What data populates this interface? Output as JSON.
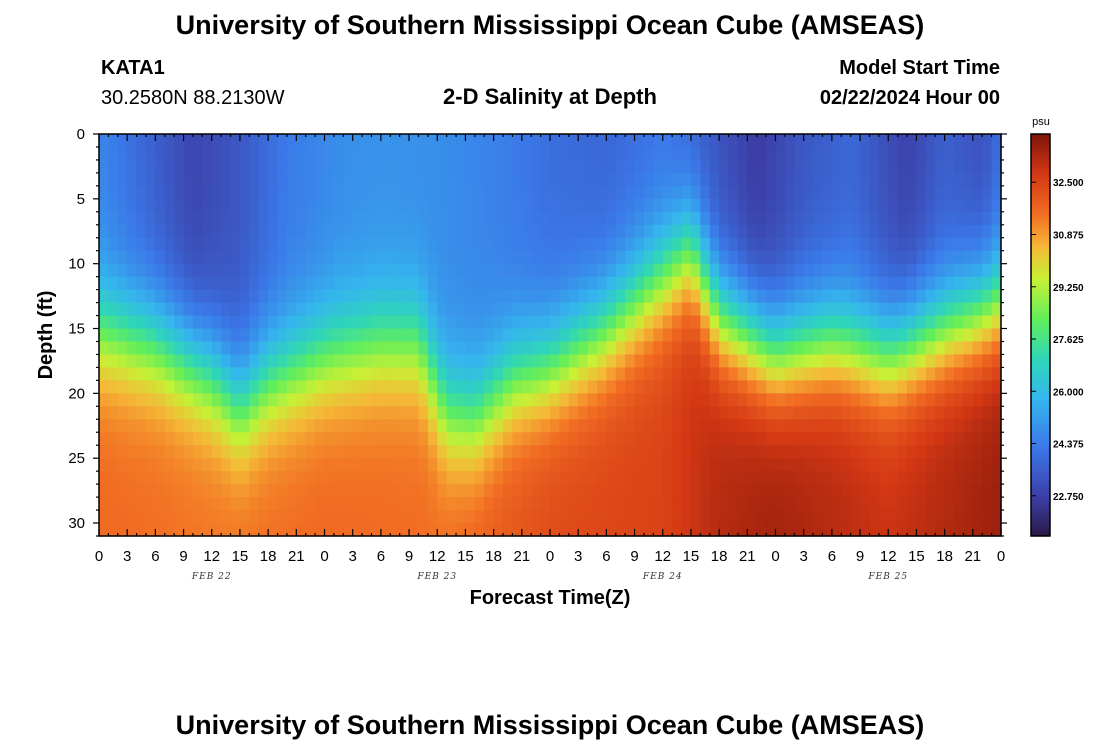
{
  "header": {
    "title": "University of Southern Mississippi Ocean Cube (AMSEAS)",
    "station": "KATA1",
    "coords": "30.2580N  88.2130W",
    "plot_title": "2-D Salinity at Depth",
    "model_start_label": "Model Start Time",
    "model_start_value": "02/22/2024 Hour 00"
  },
  "footer": {
    "title": "University of Southern Mississippi Ocean Cube (AMSEAS)"
  },
  "chart_data": {
    "type": "heatmap",
    "title": "2-D Salinity at Depth",
    "xlabel": "Forecast Time(Z)",
    "ylabel": "Depth (ft)",
    "x_tick_labels": [
      "0",
      "3",
      "6",
      "9",
      "12",
      "15",
      "18",
      "21",
      "0",
      "3",
      "6",
      "9",
      "12",
      "15",
      "18",
      "21",
      "0",
      "3",
      "6",
      "9",
      "12",
      "15",
      "18",
      "21",
      "0",
      "3",
      "6",
      "9",
      "12",
      "15",
      "18",
      "21",
      "0"
    ],
    "x_range_hours": [
      0,
      96
    ],
    "date_labels": [
      {
        "label": "FEB 22",
        "hour": 12
      },
      {
        "label": "FEB 23",
        "hour": 36
      },
      {
        "label": "FEB 24",
        "hour": 60
      },
      {
        "label": "FEB 25",
        "hour": 84
      }
    ],
    "y_ticks": [
      0,
      5,
      10,
      15,
      20,
      25,
      30
    ],
    "ylim": [
      0,
      31
    ],
    "y_inverted": true,
    "colorbar": {
      "unit": "psu",
      "min": 21.5,
      "max": 34.0,
      "tick_labels": [
        "32.500",
        "30.875",
        "29.250",
        "27.625",
        "26.000",
        "24.375",
        "22.750"
      ],
      "tick_values": [
        32.5,
        30.875,
        29.25,
        27.625,
        26.0,
        24.375,
        22.75
      ]
    },
    "halocline_depth_ft": {
      "hours": [
        0,
        6,
        12,
        15,
        18,
        24,
        30,
        34,
        37,
        40,
        44,
        48,
        54,
        60,
        63,
        66,
        72,
        78,
        84,
        90,
        96
      ],
      "depth": [
        15,
        16,
        18.5,
        21,
        19,
        17,
        16,
        16,
        21.5,
        22,
        19,
        18,
        15,
        11,
        9,
        14,
        17,
        16,
        17,
        15,
        13
      ]
    },
    "surface_salinity_psu": {
      "hours": [
        0,
        6,
        10,
        15,
        20,
        26,
        30,
        36,
        42,
        48,
        54,
        60,
        64,
        70,
        75,
        80,
        86,
        90,
        94,
        96
      ],
      "psu": [
        24.6,
        23.6,
        22.9,
        23.4,
        24.3,
        24.8,
        24.9,
        24.8,
        24.5,
        24.0,
        23.8,
        24.2,
        23.6,
        22.6,
        23.4,
        23.8,
        22.8,
        23.6,
        23.2,
        24.0
      ]
    },
    "deep_salinity_psu": {
      "hours": [
        0,
        12,
        24,
        36,
        48,
        60,
        66,
        72,
        84,
        96
      ],
      "psu": [
        31.6,
        31.4,
        31.6,
        31.5,
        32.3,
        32.5,
        33.2,
        33.5,
        32.9,
        33.6
      ]
    }
  }
}
